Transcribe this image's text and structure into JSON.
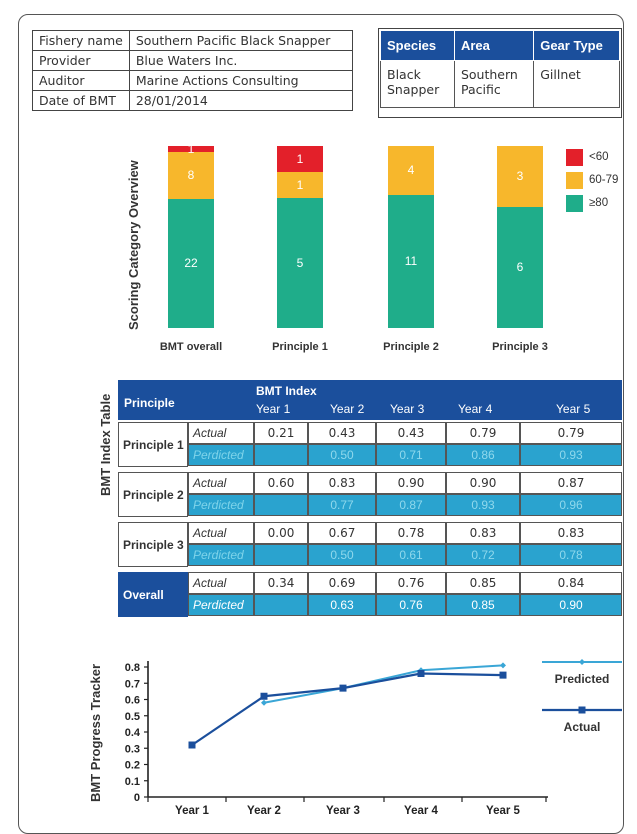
{
  "info_table": [
    {
      "key": "Fishery name",
      "value": "Southern Pacific Black Snapper"
    },
    {
      "key": "Provider",
      "value": "Blue Waters Inc."
    },
    {
      "key": "Auditor",
      "value": "Marine Actions Consulting"
    },
    {
      "key": "Date of BMT",
      "value": "28/01/2014"
    }
  ],
  "species_table": {
    "headers": [
      "Species",
      "Area",
      "Gear Type"
    ],
    "values": [
      [
        "Black",
        "Snapper"
      ],
      [
        "Southern",
        "Pacific"
      ],
      [
        "Gillnet"
      ]
    ]
  },
  "scoring": {
    "title": "Scoring Category Overview",
    "legend": [
      "<60",
      "60-79",
      "≥80"
    ],
    "colors": {
      "low": "#e3202a",
      "mid": "#f7b72c",
      "high": "#1fad8a"
    }
  },
  "index_table": {
    "title": "BMT Index Table",
    "header_principle": "Principle",
    "header_index": "BMT Index",
    "years": [
      "Year 1",
      "Year 2",
      "Year 3",
      "Year 4",
      "Year 5"
    ],
    "actual_label": "Actual",
    "predicted_label": "Perdicted",
    "rows": [
      {
        "name": "Principle 1",
        "actual": [
          "0.21",
          "0.43",
          "0.43",
          "0.79",
          "0.79"
        ],
        "predicted": [
          "",
          "0.50",
          "0.71",
          "0.86",
          "0.93"
        ]
      },
      {
        "name": "Principle 2",
        "actual": [
          "0.60",
          "0.83",
          "0.90",
          "0.90",
          "0.87"
        ],
        "predicted": [
          "",
          "0.77",
          "0.87",
          "0.93",
          "0.96"
        ]
      },
      {
        "name": "Principle 3",
        "actual": [
          "0.00",
          "0.67",
          "0.78",
          "0.83",
          "0.83"
        ],
        "predicted": [
          "",
          "0.50",
          "0.61",
          "0.72",
          "0.78"
        ]
      },
      {
        "name": "Overall",
        "actual": [
          "0.34",
          "0.69",
          "0.76",
          "0.85",
          "0.84"
        ],
        "predicted": [
          "",
          "0.63",
          "0.76",
          "0.85",
          "0.90"
        ]
      }
    ]
  },
  "tracker": {
    "title": "BMT Progress Tracker",
    "legend_predicted": "Predicted",
    "legend_actual": "Actual",
    "colors": {
      "predicted": "#3aa6d6",
      "actual": "#1b4f9c"
    }
  },
  "chart_data": [
    {
      "type": "bar",
      "stacked": true,
      "title": "Scoring Category Overview",
      "categories": [
        "BMT overall",
        "Principle 1",
        "Principle 2",
        "Principle 3"
      ],
      "series": [
        {
          "name": "≥80",
          "values": [
            22,
            5,
            11,
            6
          ]
        },
        {
          "name": "60-79",
          "values": [
            8,
            1,
            4,
            3
          ]
        },
        {
          "name": "<60",
          "values": [
            1,
            1,
            0,
            0
          ]
        }
      ],
      "legend": "right"
    },
    {
      "type": "line",
      "title": "BMT Progress Tracker",
      "x": [
        "Year 1",
        "Year 2",
        "Year 3",
        "Year 4",
        "Year 5"
      ],
      "series": [
        {
          "name": "Predicted",
          "values": [
            null,
            0.58,
            0.67,
            0.78,
            0.81
          ]
        },
        {
          "name": "Actual",
          "values": [
            0.32,
            0.62,
            0.67,
            0.76,
            0.75
          ]
        }
      ],
      "yticks": [
        "0",
        "0.1",
        "0.2",
        "0.3",
        "0.4",
        "0.5",
        "0.6",
        "0.7",
        "0.8"
      ],
      "ylim": [
        0,
        0.85
      ],
      "legend": "right"
    }
  ]
}
